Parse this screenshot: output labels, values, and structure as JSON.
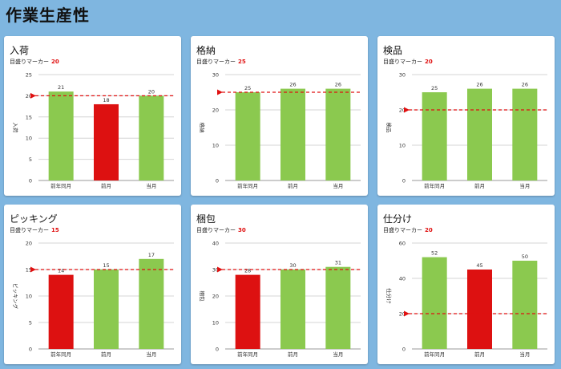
{
  "page_title": "作業生産性",
  "colors": {
    "good": "#8bc94f",
    "bad": "#dd1111",
    "marker": "#e01010",
    "background": "#7fb6e0"
  },
  "marker_prefix": "目盛りマーカー",
  "chart_data": [
    {
      "type": "bar",
      "title": "入荷",
      "ylabel": "入荷",
      "marker": 20,
      "ylim": [
        0,
        25
      ],
      "ticks": [
        0,
        5,
        10,
        15,
        20,
        25
      ],
      "categories": [
        "前年同月",
        "前月",
        "当月"
      ],
      "values": [
        21,
        18,
        20
      ],
      "bar_colors": [
        "good",
        "bad",
        "good"
      ]
    },
    {
      "type": "bar",
      "title": "格納",
      "ylabel": "格納",
      "marker": 25,
      "ylim": [
        0,
        30
      ],
      "ticks": [
        0,
        10,
        20,
        30
      ],
      "categories": [
        "前年同月",
        "前月",
        "当月"
      ],
      "values": [
        25,
        26,
        26
      ],
      "bar_colors": [
        "good",
        "good",
        "good"
      ]
    },
    {
      "type": "bar",
      "title": "検品",
      "ylabel": "検品",
      "marker": 20,
      "ylim": [
        0,
        30
      ],
      "ticks": [
        0,
        10,
        20,
        30
      ],
      "categories": [
        "前年同月",
        "前月",
        "当月"
      ],
      "values": [
        25,
        26,
        26
      ],
      "bar_colors": [
        "good",
        "good",
        "good"
      ]
    },
    {
      "type": "bar",
      "title": "ピッキング",
      "ylabel": "ピッキング",
      "marker": 15,
      "ylim": [
        0,
        20
      ],
      "ticks": [
        0,
        5,
        10,
        15,
        20
      ],
      "categories": [
        "前年同月",
        "前月",
        "当月"
      ],
      "values": [
        14,
        15,
        17
      ],
      "bar_colors": [
        "bad",
        "good",
        "good"
      ]
    },
    {
      "type": "bar",
      "title": "梱包",
      "ylabel": "梱包",
      "marker": 30,
      "ylim": [
        0,
        40
      ],
      "ticks": [
        0,
        10,
        20,
        30,
        40
      ],
      "categories": [
        "前年同月",
        "前月",
        "当月"
      ],
      "values": [
        28,
        30,
        31
      ],
      "bar_colors": [
        "bad",
        "good",
        "good"
      ]
    },
    {
      "type": "bar",
      "title": "仕分け",
      "ylabel": "仕分け",
      "marker": 20,
      "ylim": [
        0,
        60
      ],
      "ticks": [
        0,
        20,
        40,
        60
      ],
      "categories": [
        "前年同月",
        "前月",
        "当月"
      ],
      "values": [
        52,
        45,
        50
      ],
      "bar_colors": [
        "good",
        "bad",
        "good"
      ]
    }
  ]
}
